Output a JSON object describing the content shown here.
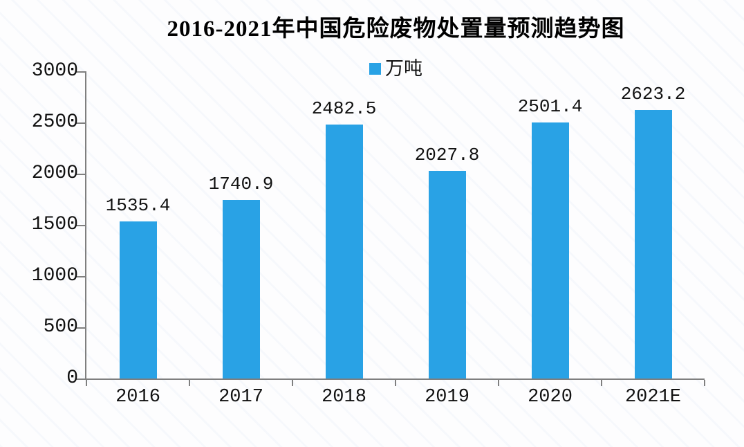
{
  "title": "2016-2021年中国危险废物处置量预测趋势图",
  "legend": {
    "label": "万吨",
    "swatch_color": "#29A2E5"
  },
  "colors": {
    "bar": "#29A2E5",
    "axis": "#7f7f7f",
    "text": "#111111",
    "background": "#fdfdfe"
  },
  "chart_data": {
    "type": "bar",
    "title": "2016-2021年中国危险废物处置量预测趋势图",
    "categories": [
      "2016",
      "2017",
      "2018",
      "2019",
      "2020",
      "2021E"
    ],
    "series": [
      {
        "name": "万吨",
        "values": [
          1535.4,
          1740.9,
          2482.5,
          2027.8,
          2501.4,
          2623.2
        ]
      }
    ],
    "data_labels": [
      "1535.4",
      "1740.9",
      "2482.5",
      "2027.8",
      "2501.4",
      "2623.2"
    ],
    "xlabel": "",
    "ylabel": "",
    "ylim": [
      0,
      3000
    ],
    "yticks": [
      0,
      500,
      1000,
      1500,
      2000,
      2500,
      3000
    ],
    "grid": false,
    "legend_position": "top",
    "bar_color": "#29A2E5"
  }
}
